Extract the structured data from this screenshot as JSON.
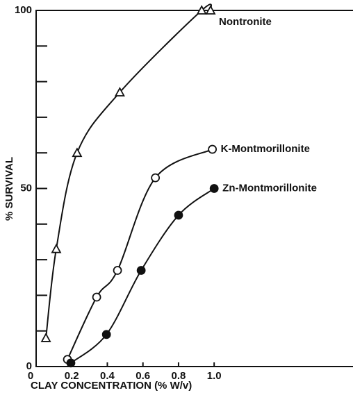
{
  "chart_data": {
    "type": "line",
    "xlabel": "CLAY CONCENTRATION (% W/v)",
    "ylabel": "% SURVIVAL",
    "xlim": [
      0,
      1.78
    ],
    "ylim": [
      0,
      100
    ],
    "xticks": [
      0,
      0.2,
      0.4,
      0.6,
      0.8,
      {
        "value": 1.0,
        "label": "1.0"
      }
    ],
    "yticks": [
      0,
      10,
      20,
      30,
      40,
      50,
      60,
      70,
      80,
      90,
      100
    ],
    "ytick_labels_shown": [
      0,
      50,
      100
    ],
    "series": [
      {
        "name": "Nontronite",
        "color": "#111111",
        "marker": "triangle",
        "x": [
          0.055,
          0.113,
          0.23,
          0.47,
          0.93,
          0.98
        ],
        "values": [
          8,
          33,
          60,
          77,
          100,
          100
        ]
      },
      {
        "name": "K-Montmorillonite",
        "color": "#111111",
        "marker": "open-circle",
        "x": [
          0.176,
          0.34,
          0.457,
          0.67,
          0.99
        ],
        "values": [
          2,
          19.5,
          27,
          53,
          61
        ]
      },
      {
        "name": "Zn-Montmorillonite",
        "color": "#111111",
        "marker": "filled-circle",
        "x": [
          0.195,
          0.395,
          0.59,
          0.8,
          1.0
        ],
        "values": [
          1,
          9,
          27,
          42.5,
          50
        ]
      }
    ]
  }
}
